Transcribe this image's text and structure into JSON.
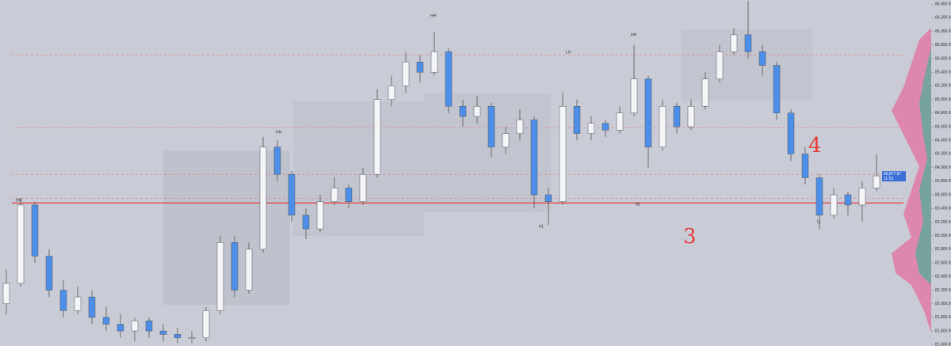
{
  "chart_data": {
    "type": "candlestick",
    "candles": [
      [
        82000,
        82500,
        81850,
        82300
      ],
      [
        82300,
        83550,
        82250,
        83450
      ],
      [
        83450,
        83500,
        82600,
        82700
      ],
      [
        82700,
        82800,
        82100,
        82200
      ],
      [
        82200,
        82350,
        81800,
        81900
      ],
      [
        81900,
        82250,
        81850,
        82100
      ],
      [
        82100,
        82200,
        81700,
        81800
      ],
      [
        81800,
        81950,
        81600,
        81700
      ],
      [
        81700,
        81850,
        81500,
        81600
      ],
      [
        81600,
        81800,
        81450,
        81750
      ],
      [
        81750,
        81800,
        81500,
        81600
      ],
      [
        81600,
        81700,
        81450,
        81550
      ],
      [
        81550,
        81650,
        81420,
        81500
      ],
      [
        81500,
        81600,
        81420,
        81500
      ],
      [
        81500,
        81950,
        81450,
        81900
      ],
      [
        81900,
        83000,
        81850,
        82900
      ],
      [
        82900,
        83000,
        82100,
        82200
      ],
      [
        82200,
        82900,
        82150,
        82800
      ],
      [
        82800,
        84450,
        82750,
        84300
      ],
      [
        84300,
        84400,
        83800,
        83900
      ],
      [
        83900,
        83950,
        83200,
        83300
      ],
      [
        83300,
        83400,
        82950,
        83100
      ],
      [
        83100,
        83600,
        83050,
        83500
      ],
      [
        83500,
        83850,
        83450,
        83700
      ],
      [
        83700,
        83750,
        83400,
        83500
      ],
      [
        83500,
        84000,
        83450,
        83900
      ],
      [
        83900,
        85150,
        83850,
        85000
      ],
      [
        85000,
        85350,
        84900,
        85200
      ],
      [
        85200,
        85700,
        85100,
        85550
      ],
      [
        85550,
        85650,
        85250,
        85400
      ],
      [
        85400,
        86000,
        85350,
        85700
      ],
      [
        85700,
        85750,
        84800,
        84900
      ],
      [
        84900,
        85000,
        84600,
        84750
      ],
      [
        84750,
        85050,
        84650,
        84900
      ],
      [
        84900,
        84950,
        84150,
        84300
      ],
      [
        84300,
        84600,
        84200,
        84500
      ],
      [
        84500,
        84850,
        84400,
        84700
      ],
      [
        84700,
        84750,
        83400,
        83600
      ],
      [
        83600,
        83700,
        83150,
        83500
      ],
      [
        83500,
        85100,
        83450,
        84900
      ],
      [
        84900,
        85000,
        84400,
        84500
      ],
      [
        84500,
        84750,
        84400,
        84650
      ],
      [
        84650,
        84700,
        84450,
        84550
      ],
      [
        84550,
        84900,
        84500,
        84800
      ],
      [
        84800,
        85800,
        84750,
        85300
      ],
      [
        85300,
        85350,
        84000,
        84300
      ],
      [
        84300,
        85000,
        84250,
        84900
      ],
      [
        84900,
        84950,
        84500,
        84600
      ],
      [
        84600,
        85000,
        84550,
        84900
      ],
      [
        84900,
        85400,
        84850,
        85300
      ],
      [
        85300,
        85800,
        85250,
        85700
      ],
      [
        85700,
        86050,
        85650,
        85950
      ],
      [
        85950,
        86450,
        85600,
        85700
      ],
      [
        85700,
        85800,
        85350,
        85500
      ],
      [
        85500,
        85550,
        84700,
        84800
      ],
      [
        84800,
        84850,
        84100,
        84200
      ],
      [
        84200,
        84300,
        83750,
        83850
      ],
      [
        83850,
        83900,
        83100,
        83300
      ],
      [
        83300,
        83700,
        83250,
        83600
      ],
      [
        83600,
        83650,
        83300,
        83450
      ],
      [
        83450,
        83800,
        83200,
        83700
      ],
      [
        83700,
        84200,
        83650,
        83877.87
      ]
    ],
    "up_color": "#f4f5f8",
    "down_color": "#4d8ee8",
    "levels": [
      {
        "price": 83480,
        "color": "#e53935",
        "style": "solid"
      },
      {
        "price": 84580,
        "color": "#e57373",
        "style": "dashed"
      },
      {
        "price": 85650,
        "color": "#e57373",
        "style": "dashed"
      },
      {
        "price": 83900,
        "color": "#e57373",
        "style": "dashed"
      },
      {
        "price": 83550,
        "color": "#e57373",
        "style": "dashed"
      }
    ],
    "annotations": [
      "HH",
      "HH",
      "HH",
      "LH",
      "HH",
      "HL",
      "HL",
      "LL",
      "4",
      "3"
    ],
    "current_price": {
      "value": 83877.87,
      "label": "83,877.87"
    },
    "countdown": "11:53",
    "ylim": [
      81380,
      86460
    ],
    "yticks": [
      {
        "value": 81400,
        "label": "81,400.00"
      },
      {
        "value": 81600,
        "label": "81,600.00"
      },
      {
        "value": 81800,
        "label": "81,800.00"
      },
      {
        "value": 82000,
        "label": "82,000.00"
      },
      {
        "value": 82200,
        "label": "82,200.00"
      },
      {
        "value": 82400,
        "label": "82,400.00"
      },
      {
        "value": 82600,
        "label": "82,600.00"
      },
      {
        "value": 82800,
        "label": "82,800.00"
      },
      {
        "value": 83000,
        "label": "83,000.00"
      },
      {
        "value": 83200,
        "label": "83,200.00"
      },
      {
        "value": 83400,
        "label": "83,400.00"
      },
      {
        "value": 83600,
        "label": "83,600.00"
      },
      {
        "value": 83800,
        "label": "83,800.00"
      },
      {
        "value": 84000,
        "label": "84,000.00"
      },
      {
        "value": 84200,
        "label": "84,200.00"
      },
      {
        "value": 84400,
        "label": "84,400.00"
      },
      {
        "value": 84600,
        "label": "84,600.00"
      },
      {
        "value": 84800,
        "label": "84,800.00"
      },
      {
        "value": 85000,
        "label": "85,000.00"
      },
      {
        "value": 85200,
        "label": "85,200.00"
      },
      {
        "value": 85400,
        "label": "85,400.00"
      },
      {
        "value": 85600,
        "label": "85,600.00"
      },
      {
        "value": 85800,
        "label": "85,800.00"
      },
      {
        "value": 86000,
        "label": "86,000.00"
      },
      {
        "value": 86200,
        "label": "86,200.00"
      },
      {
        "value": 86400,
        "label": "86,400.00"
      }
    ]
  }
}
